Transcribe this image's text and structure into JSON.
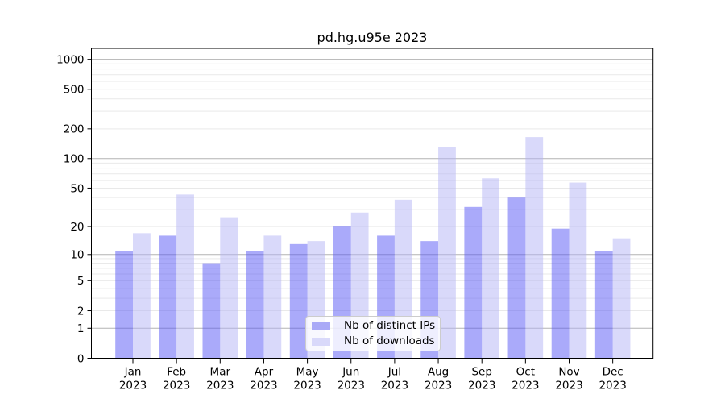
{
  "chart_data": {
    "type": "bar",
    "title": "pd.hg.u95e 2023",
    "categories": [
      "Jan",
      "Feb",
      "Mar",
      "Apr",
      "May",
      "Jun",
      "Jul",
      "Aug",
      "Sep",
      "Oct",
      "Nov",
      "Dec"
    ],
    "category_year": "2023",
    "series": [
      {
        "name": "Nb of distinct IPs",
        "values": [
          11,
          16,
          8,
          11,
          13,
          20,
          16,
          14,
          32,
          40,
          19,
          11
        ],
        "fill": "rgba(85,85,245,0.5)",
        "legend_color": "#a9a9f7"
      },
      {
        "name": "Nb of downloads",
        "values": [
          17,
          43,
          25,
          16,
          14,
          28,
          38,
          130,
          63,
          165,
          57,
          15
        ],
        "fill": "rgba(179,179,245,0.5)",
        "legend_color": "#d9d9fa"
      }
    ],
    "yscale": "log1p",
    "ylim": [
      0,
      1290
    ],
    "yticks": [
      0,
      1,
      2,
      5,
      10,
      20,
      50,
      100,
      200,
      500,
      1000
    ],
    "grid": {
      "major_color": "#b3b3b3",
      "minor_color": "#e9e9e9"
    },
    "legend_position": "lower center"
  }
}
